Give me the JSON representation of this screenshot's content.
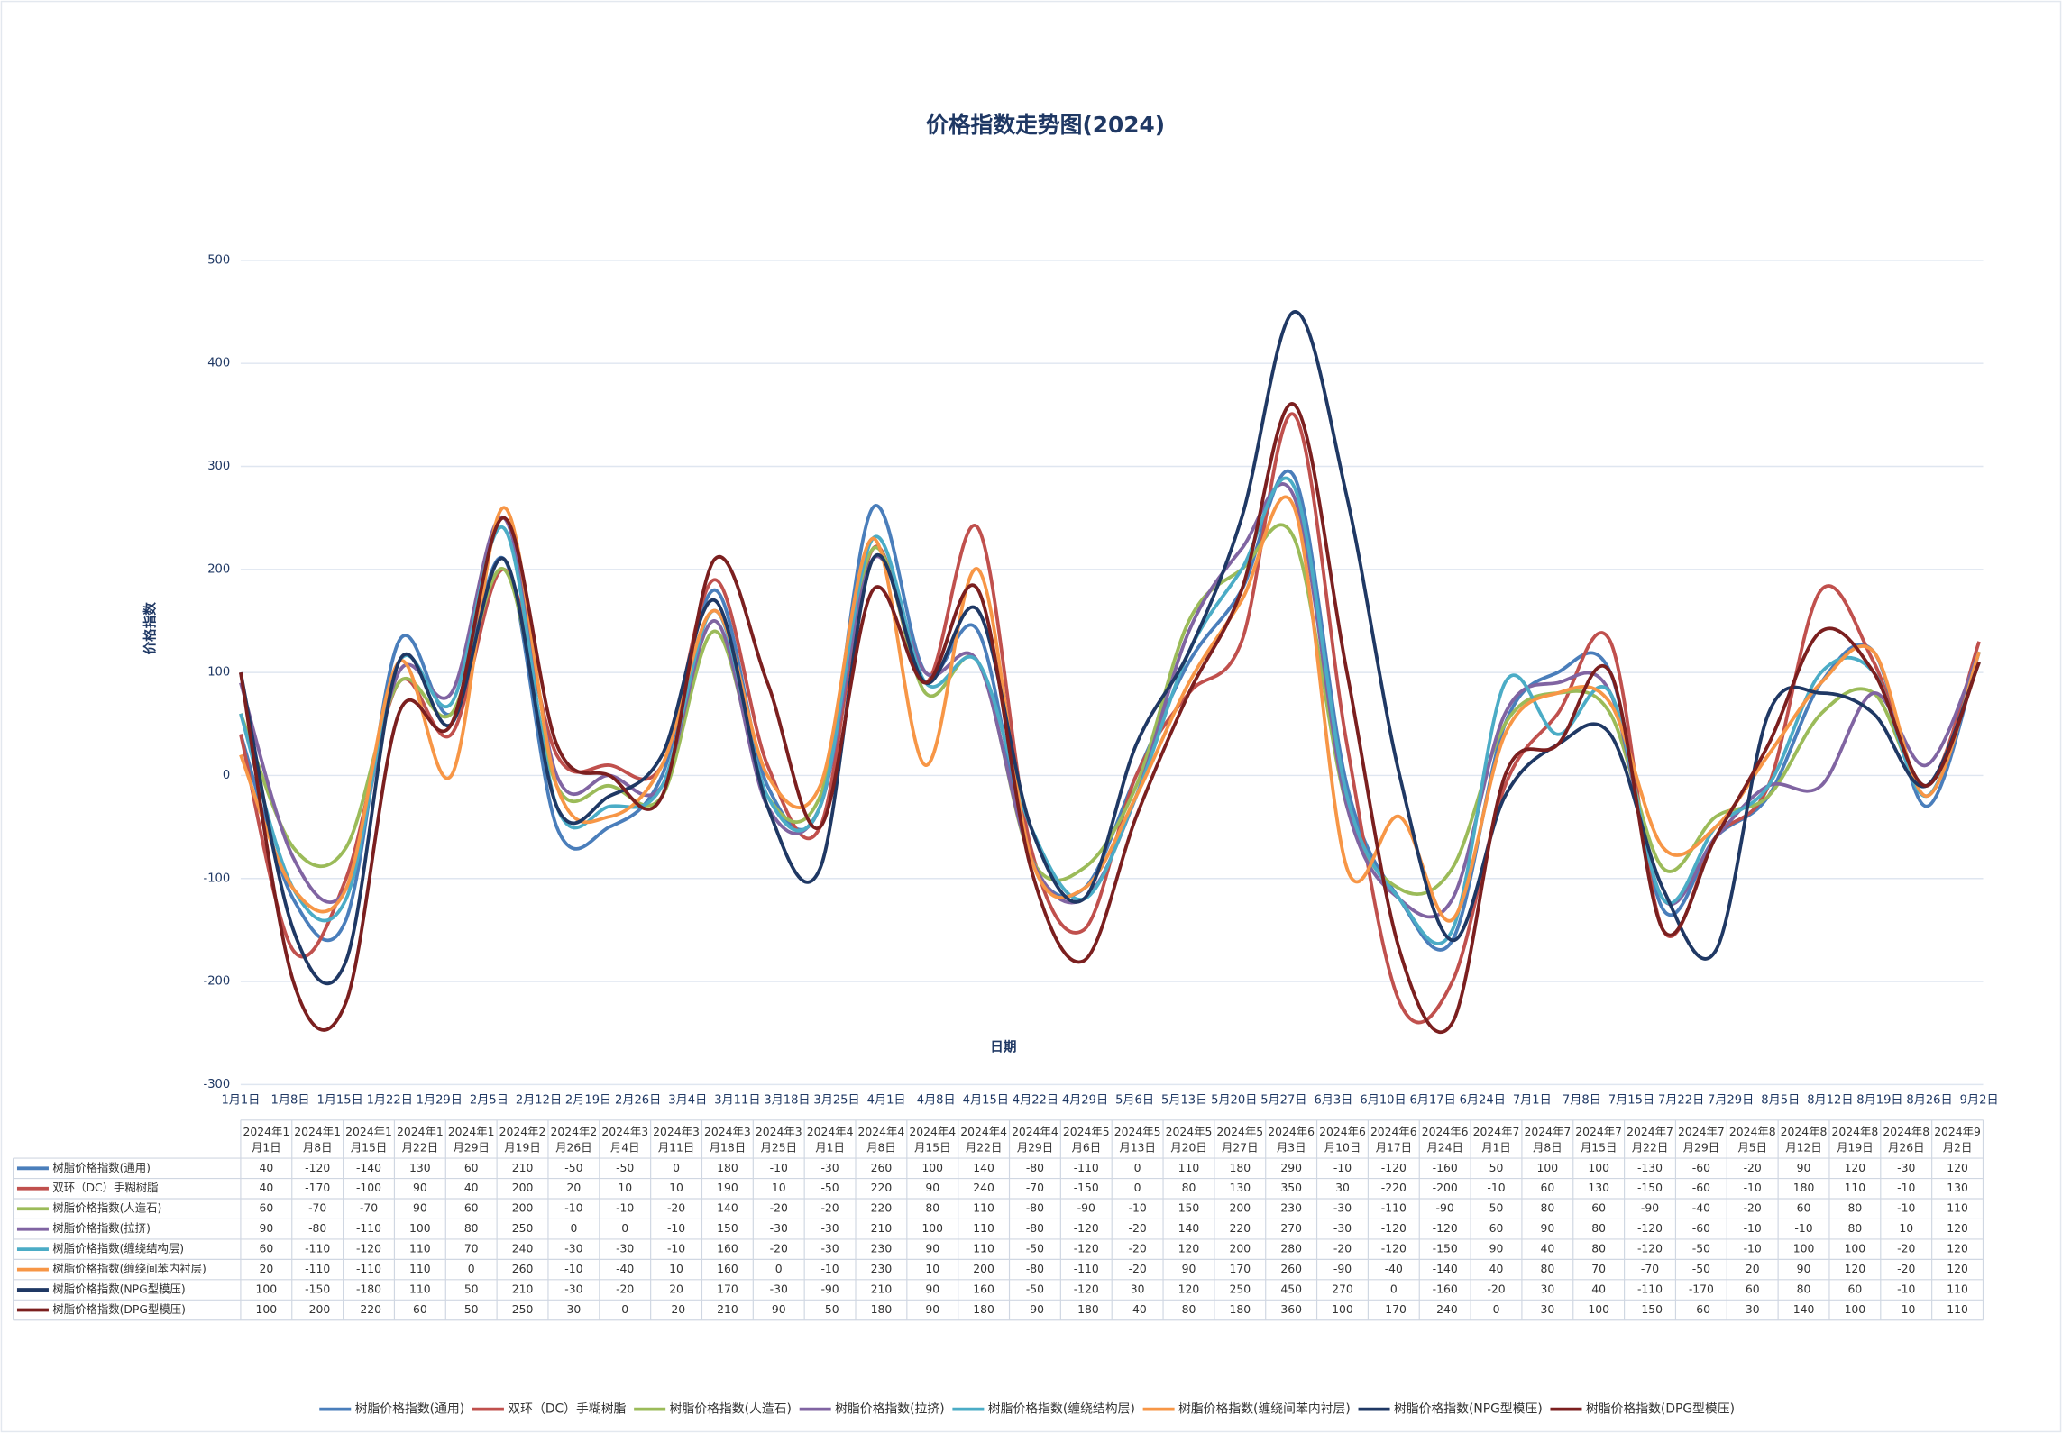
{
  "chart_data": {
    "type": "line",
    "title": "价格指数走势图(2024)",
    "y_label": "价格指数",
    "x_label": "日期",
    "x_axis_labels": [
      "1月1日",
      "1月8日",
      "1月15日",
      "1月22日",
      "1月29日",
      "2月5日",
      "2月12日",
      "2月19日",
      "2月26日",
      "3月4日",
      "3月11日",
      "3月18日",
      "3月25日",
      "4月1日",
      "4月8日",
      "4月15日",
      "4月22日",
      "4月29日",
      "5月6日",
      "5月13日",
      "5月20日",
      "5月27日",
      "6月3日",
      "6月10日",
      "6月17日",
      "6月24日",
      "7月1日",
      "7月8日",
      "7月15日",
      "7月22日",
      "7月29日",
      "8月5日",
      "8月12日",
      "8月19日",
      "8月26日",
      "9月2日"
    ],
    "categories": [
      "2024年1月1日",
      "2024年1月8日",
      "2024年1月15日",
      "2024年1月22日",
      "2024年1月29日",
      "2024年2月19日",
      "2024年2月26日",
      "2024年3月4日",
      "2024年3月11日",
      "2024年3月18日",
      "2024年3月25日",
      "2024年4月1日",
      "2024年4月8日",
      "2024年4月15日",
      "2024年4月22日",
      "2024年4月29日",
      "2024年5月6日",
      "2024年5月13日",
      "2024年5月20日",
      "2024年5月27日",
      "2024年6月3日",
      "2024年6月10日",
      "2024年6月17日",
      "2024年6月24日",
      "2024年7月1日",
      "2024年7月8日",
      "2024年7月15日",
      "2024年7月22日",
      "2024年7月29日",
      "2024年8月5日",
      "2024年8月12日",
      "2024年8月19日",
      "2024年8月26日",
      "2024年9月2日"
    ],
    "ylim": [
      -300,
      500
    ],
    "yticks": [
      -300,
      -200,
      -100,
      0,
      100,
      200,
      300,
      400,
      500
    ],
    "grid": true,
    "series": [
      {
        "name": "树脂价格指数(通用)",
        "color": "#4a7ebb",
        "values": [
          40,
          -120,
          -140,
          130,
          60,
          210,
          -50,
          -50,
          0,
          180,
          -10,
          -30,
          260,
          100,
          140,
          -80,
          -110,
          0,
          110,
          180,
          290,
          -10,
          -120,
          -160,
          50,
          100,
          100,
          -130,
          -60,
          -20,
          90,
          120,
          -30,
          120
        ]
      },
      {
        "name": "双环（DC）手糊树脂",
        "color": "#c0504d",
        "values": [
          40,
          -170,
          -100,
          90,
          40,
          200,
          20,
          10,
          10,
          190,
          10,
          -50,
          220,
          90,
          240,
          -70,
          -150,
          0,
          80,
          130,
          350,
          30,
          -220,
          -200,
          -10,
          60,
          130,
          -150,
          -60,
          -10,
          180,
          110,
          -10,
          130
        ]
      },
      {
        "name": "树脂价格指数(人造石)",
        "color": "#9bbb59",
        "values": [
          60,
          -70,
          -70,
          90,
          60,
          200,
          -10,
          -10,
          -20,
          140,
          -20,
          -20,
          220,
          80,
          110,
          -80,
          -90,
          -10,
          150,
          200,
          230,
          -30,
          -110,
          -90,
          50,
          80,
          60,
          -90,
          -40,
          -20,
          60,
          80,
          -10,
          110
        ]
      },
      {
        "name": "树脂价格指数(拉挤)",
        "color": "#8064a2",
        "values": [
          90,
          -80,
          -110,
          100,
          80,
          250,
          0,
          0,
          -10,
          150,
          -30,
          -30,
          210,
          100,
          110,
          -80,
          -120,
          -20,
          140,
          220,
          270,
          -30,
          -120,
          -120,
          60,
          90,
          80,
          -120,
          -60,
          -10,
          -10,
          80,
          10,
          120
        ]
      },
      {
        "name": "树脂价格指数(缠绕结构层)",
        "color": "#4bacc6",
        "values": [
          60,
          -110,
          -120,
          110,
          70,
          240,
          -30,
          -30,
          -10,
          160,
          -20,
          -30,
          230,
          90,
          110,
          -50,
          -120,
          -20,
          120,
          200,
          280,
          -20,
          -120,
          -150,
          90,
          40,
          80,
          -120,
          -50,
          -10,
          100,
          100,
          -20,
          120
        ]
      },
      {
        "name": "树脂价格指数(缠绕间苯内衬层)",
        "color": "#f79646",
        "values": [
          20,
          -110,
          -110,
          110,
          0,
          260,
          -10,
          -40,
          10,
          160,
          0,
          -10,
          230,
          10,
          200,
          -80,
          -110,
          -20,
          90,
          170,
          260,
          -90,
          -40,
          -140,
          40,
          80,
          70,
          -70,
          -50,
          20,
          90,
          120,
          -20,
          120
        ]
      },
      {
        "name": "树脂价格指数(NPG型模压)",
        "color": "#1f3864",
        "values": [
          100,
          -150,
          -180,
          110,
          50,
          210,
          -30,
          -20,
          20,
          170,
          -30,
          -90,
          210,
          90,
          160,
          -50,
          -120,
          30,
          120,
          250,
          450,
          270,
          0,
          -160,
          -20,
          30,
          40,
          -110,
          -170,
          60,
          80,
          60,
          -10,
          110
        ]
      },
      {
        "name": "树脂价格指数(DPG型模压)",
        "color": "#7b1f1f",
        "values": [
          100,
          -200,
          -220,
          60,
          50,
          250,
          30,
          0,
          -20,
          210,
          90,
          -50,
          180,
          90,
          180,
          -90,
          -180,
          -40,
          80,
          180,
          360,
          100,
          -170,
          -240,
          0,
          30,
          100,
          -150,
          -60,
          30,
          140,
          100,
          -10,
          110
        ]
      }
    ]
  }
}
